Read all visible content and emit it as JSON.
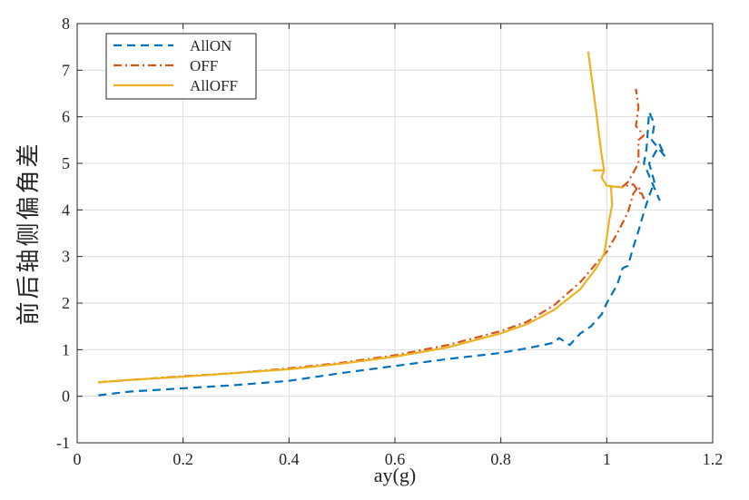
{
  "chart_data": {
    "type": "line",
    "title": "",
    "xlabel": "ay(g)",
    "ylabel": "前后轴侧偏角差",
    "xlim": [
      0,
      1.2
    ],
    "ylim": [
      -1,
      8
    ],
    "xticks": [
      0,
      0.2,
      0.4,
      0.6,
      0.8,
      1,
      1.2
    ],
    "xtick_labels": [
      "0",
      "0.2",
      "0.4",
      "0.6",
      "0.8",
      "1",
      "1.2"
    ],
    "yticks": [
      -1,
      0,
      1,
      2,
      3,
      4,
      5,
      6,
      7,
      8
    ],
    "ytick_labels": [
      "-1",
      "0",
      "1",
      "2",
      "3",
      "4",
      "5",
      "6",
      "7",
      "8"
    ],
    "grid": true,
    "legend_position": "top-left",
    "series": [
      {
        "name": "AllON",
        "color": "#0072BD",
        "style": "dashed",
        "points": [
          [
            0.04,
            0.02
          ],
          [
            0.1,
            0.1
          ],
          [
            0.2,
            0.17
          ],
          [
            0.3,
            0.24
          ],
          [
            0.4,
            0.33
          ],
          [
            0.5,
            0.5
          ],
          [
            0.6,
            0.65
          ],
          [
            0.7,
            0.8
          ],
          [
            0.8,
            0.93
          ],
          [
            0.85,
            1.03
          ],
          [
            0.88,
            1.1
          ],
          [
            0.9,
            1.15
          ],
          [
            0.91,
            1.25
          ],
          [
            0.93,
            1.1
          ],
          [
            0.95,
            1.35
          ],
          [
            0.97,
            1.5
          ],
          [
            0.99,
            1.75
          ],
          [
            1.0,
            2.0
          ],
          [
            1.02,
            2.4
          ],
          [
            1.03,
            2.75
          ],
          [
            1.04,
            2.8
          ],
          [
            1.05,
            3.2
          ],
          [
            1.06,
            3.55
          ],
          [
            1.07,
            3.95
          ],
          [
            1.08,
            4.3
          ],
          [
            1.09,
            4.6
          ],
          [
            1.08,
            5.0
          ],
          [
            1.1,
            5.4
          ],
          [
            1.11,
            5.15
          ],
          [
            1.085,
            5.5
          ],
          [
            1.09,
            5.85
          ],
          [
            1.08,
            6.1
          ],
          [
            1.075,
            5.3
          ],
          [
            1.07,
            5.0
          ],
          [
            1.1,
            4.2
          ]
        ]
      },
      {
        "name": "OFF",
        "color": "#D95319",
        "style": "dashdot",
        "points": [
          [
            0.04,
            0.3
          ],
          [
            0.1,
            0.35
          ],
          [
            0.2,
            0.43
          ],
          [
            0.3,
            0.5
          ],
          [
            0.4,
            0.6
          ],
          [
            0.5,
            0.72
          ],
          [
            0.6,
            0.88
          ],
          [
            0.7,
            1.1
          ],
          [
            0.8,
            1.4
          ],
          [
            0.85,
            1.6
          ],
          [
            0.9,
            1.95
          ],
          [
            0.95,
            2.45
          ],
          [
            0.98,
            2.85
          ],
          [
            1.0,
            3.1
          ],
          [
            1.02,
            3.5
          ],
          [
            1.04,
            3.95
          ],
          [
            1.05,
            4.35
          ],
          [
            1.06,
            4.5
          ],
          [
            1.07,
            4.25
          ],
          [
            1.05,
            4.55
          ],
          [
            1.03,
            4.5
          ],
          [
            1.04,
            4.6
          ],
          [
            1.05,
            4.8
          ],
          [
            1.06,
            5.0
          ],
          [
            1.06,
            5.5
          ],
          [
            1.07,
            5.6
          ],
          [
            1.055,
            5.8
          ],
          [
            1.06,
            6.2
          ],
          [
            1.055,
            6.6
          ]
        ]
      },
      {
        "name": "AllOFF",
        "color": "#EDB120",
        "style": "solid",
        "points": [
          [
            0.04,
            0.3
          ],
          [
            0.1,
            0.35
          ],
          [
            0.2,
            0.42
          ],
          [
            0.3,
            0.5
          ],
          [
            0.4,
            0.58
          ],
          [
            0.5,
            0.7
          ],
          [
            0.6,
            0.85
          ],
          [
            0.7,
            1.05
          ],
          [
            0.8,
            1.35
          ],
          [
            0.85,
            1.55
          ],
          [
            0.9,
            1.85
          ],
          [
            0.95,
            2.3
          ],
          [
            0.98,
            2.75
          ],
          [
            0.995,
            3.05
          ],
          [
            1.0,
            3.4
          ],
          [
            1.005,
            3.8
          ],
          [
            1.01,
            4.1
          ],
          [
            1.008,
            4.5
          ],
          [
            1.02,
            4.5
          ],
          [
            1.03,
            4.48
          ],
          [
            1.0,
            4.52
          ],
          [
            0.99,
            4.7
          ],
          [
            0.995,
            4.85
          ],
          [
            0.975,
            4.85
          ],
          [
            0.995,
            4.85
          ],
          [
            0.99,
            5.2
          ],
          [
            0.98,
            6.1
          ],
          [
            0.965,
            7.4
          ]
        ]
      }
    ]
  }
}
